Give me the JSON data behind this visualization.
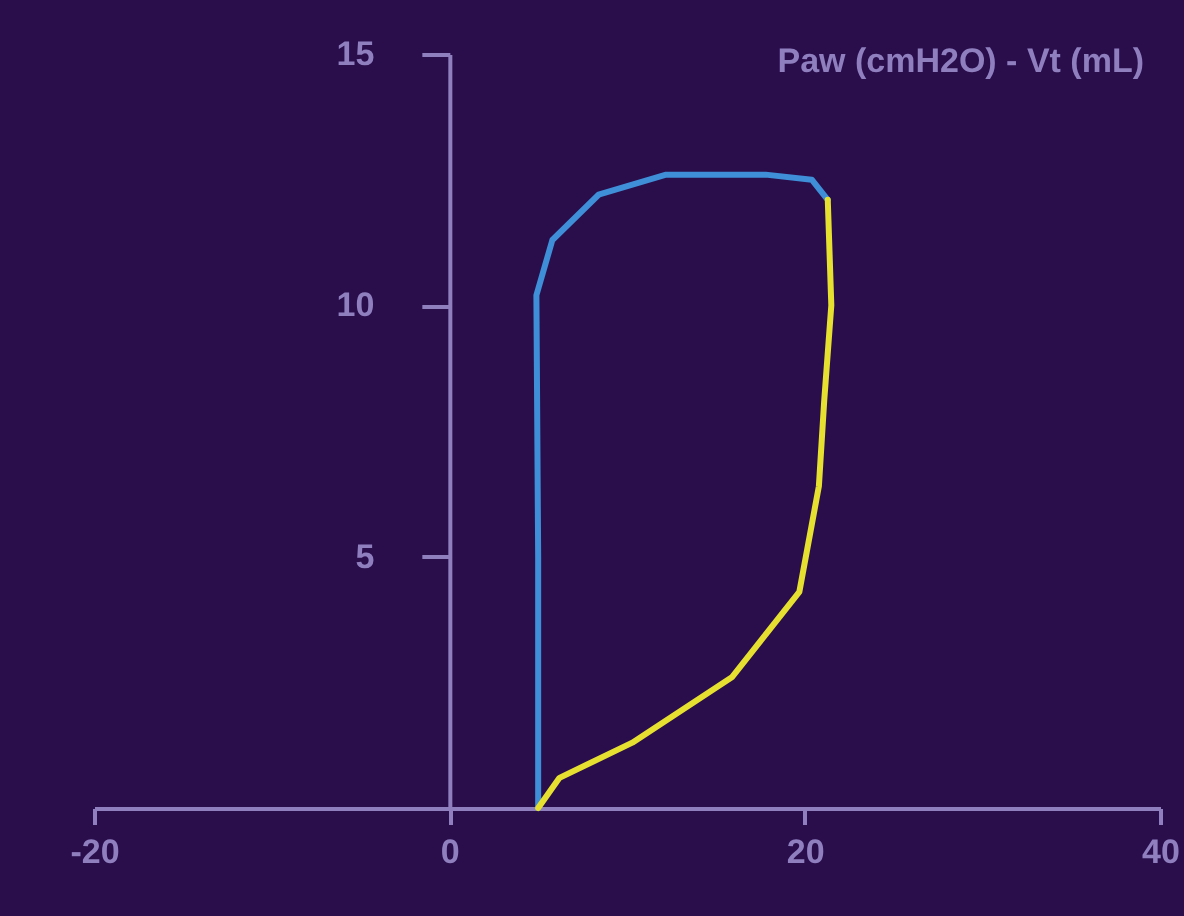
{
  "chart_data": {
    "type": "line",
    "title": "Paw (cmH2O) - Vt (mL)",
    "xlim": [
      -20,
      40
    ],
    "xticks": [
      -20,
      0,
      20,
      40
    ],
    "ylim": [
      0,
      15
    ],
    "yticks": [
      5,
      10,
      15
    ],
    "grid": false,
    "marker": "none",
    "line_style": "solid",
    "series": [
      {
        "color": "#3f8fd8",
        "x": [
          5.0,
          5.0,
          4.9,
          5.8,
          8.4,
          12.2,
          17.8,
          20.4,
          21.3
        ],
        "values": [
          0,
          5,
          10.2,
          11.3,
          12.2,
          12.6,
          12.6,
          12.5,
          12.1
        ]
      },
      {
        "color": "#e6e030",
        "x": [
          21.3,
          21.5,
          21.1,
          20.8,
          19.7,
          15.9,
          10.3,
          6.2,
          5.0
        ],
        "values": [
          12.1,
          10.0,
          8.1,
          6.4,
          4.3,
          2.6,
          1.3,
          0.6,
          0
        ]
      }
    ]
  }
}
